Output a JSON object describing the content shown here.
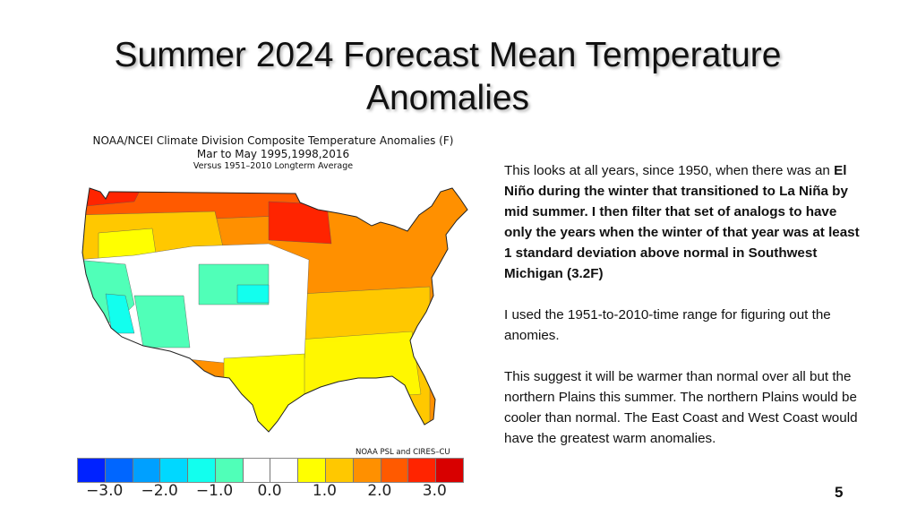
{
  "slide": {
    "title": "Summer 2024 Forecast Mean Temperature Anomalies",
    "page_number": "5"
  },
  "map": {
    "header_line1": "NOAA/NCEI Climate Division Composite Temperature Anomalies (F)",
    "header_line2": "Mar to May  1995,1998,2016",
    "header_line3": "Versus 1951–2010 Longterm Average",
    "credit": "NOAA PSL and CIRES–CU",
    "colorbar_colors": [
      "#0022ff",
      "#0066ff",
      "#00a0ff",
      "#00d8ff",
      "#12ffee",
      "#50ffb8",
      "#ffffff",
      "#ffffff",
      "#ffff00",
      "#ffc800",
      "#ff9000",
      "#ff5a00",
      "#ff2400",
      "#d80000"
    ],
    "colorbar_ticks": [
      "−3.0",
      "−2.0",
      "−1.0",
      "0.0",
      "1.0",
      "2.0",
      "3.0"
    ]
  },
  "body": {
    "p1_plain": "This looks at all years, since 1950,  when there was an ",
    "p1_bold": "El Niño during the winter that transitioned to La Niña by mid summer. I then filter that set of analogs to have only the years when the winter of that year was at least 1 standard deviation above normal in Southwest Michigan (3.2F)",
    "p2": "I used the 1951-to-2010-time range for figuring out the anomies.",
    "p3": "This suggest it will be warmer than normal over all but the northern Plains this summer.   The northern Plains would be cooler than normal.  The East Coast and West Coast would have the greatest warm anomalies."
  }
}
